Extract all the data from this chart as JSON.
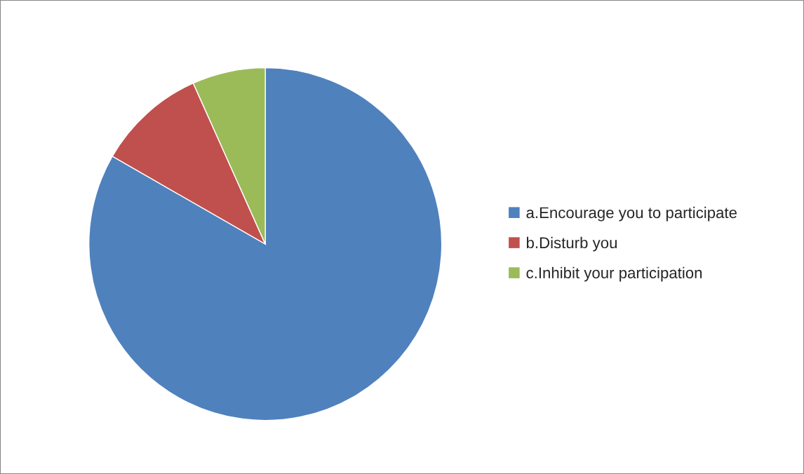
{
  "chart_data": {
    "type": "pie",
    "categories": [
      "a.Encourage you to participate",
      "b.Disturb you",
      "c.Inhibit your participation"
    ],
    "values": [
      83.3,
      10,
      6.7
    ],
    "colors": [
      "#4f81bd",
      "#c0504d",
      "#9bbb59"
    ],
    "legend": "right"
  }
}
